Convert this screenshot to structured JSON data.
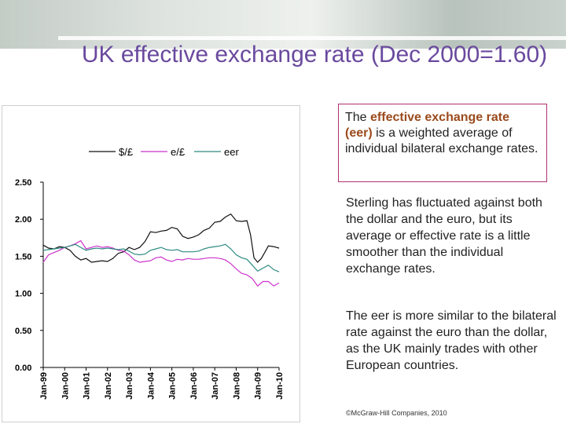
{
  "title": "UK effective exchange rate (Dec 2000=1.60)",
  "definition": {
    "pre": "The ",
    "highlight": "effective exchange rate (eer)",
    "post": " is a weighted average of individual bilateral exchange rates."
  },
  "paragraphs": [
    "Sterling has fluctuated against both the dollar and the euro, but its average or effective rate is a little smoother than the individual exchange rates.",
    "The eer  is more similar to the bilateral rate against the euro than the dollar, as the UK mainly trades with other European countries."
  ],
  "footer": "©McGraw-Hill Companies, 2010",
  "chart_data": {
    "type": "line",
    "title": "",
    "xlabel": "",
    "ylabel": "",
    "ylim": [
      0,
      2.5
    ],
    "y_ticks": [
      "0.00",
      "0.50",
      "1.00",
      "1.50",
      "2.00",
      "2.50"
    ],
    "y_tick_values": [
      0,
      0.5,
      1.0,
      1.5,
      2.0,
      2.5
    ],
    "x_ticks": [
      "Jan-99",
      "Jan-00",
      "Jan-01",
      "Jan-02",
      "Jan-03",
      "Jan-04",
      "Jan-05",
      "Jan-06",
      "Jan-07",
      "Jan-08",
      "Jan-09",
      "Jan-10"
    ],
    "x_tick_values": [
      1999,
      2000,
      2001,
      2002,
      2003,
      2004,
      2005,
      2006,
      2007,
      2008,
      2009,
      2010
    ],
    "grid": false,
    "legend_position": "top",
    "series": [
      {
        "name": "$/£",
        "color": "#111111",
        "x": [
          1999.0,
          1999.25,
          1999.5,
          1999.75,
          2000.0,
          2000.25,
          2000.5,
          2000.75,
          2001.0,
          2001.25,
          2001.5,
          2001.75,
          2002.0,
          2002.25,
          2002.5,
          2002.75,
          2003.0,
          2003.25,
          2003.5,
          2003.75,
          2004.0,
          2004.25,
          2004.5,
          2004.75,
          2005.0,
          2005.25,
          2005.5,
          2005.75,
          2006.0,
          2006.25,
          2006.5,
          2006.75,
          2007.0,
          2007.25,
          2007.5,
          2007.75,
          2008.0,
          2008.25,
          2008.5,
          2008.67,
          2008.83,
          2009.0,
          2009.17,
          2009.33,
          2009.5,
          2009.75,
          2010.0
        ],
        "y": [
          1.65,
          1.61,
          1.6,
          1.63,
          1.62,
          1.58,
          1.5,
          1.45,
          1.47,
          1.42,
          1.43,
          1.44,
          1.43,
          1.47,
          1.54,
          1.56,
          1.62,
          1.59,
          1.62,
          1.7,
          1.83,
          1.82,
          1.84,
          1.85,
          1.89,
          1.87,
          1.77,
          1.74,
          1.76,
          1.79,
          1.85,
          1.88,
          1.96,
          1.97,
          2.03,
          2.07,
          1.98,
          1.97,
          1.98,
          1.79,
          1.48,
          1.42,
          1.47,
          1.55,
          1.64,
          1.63,
          1.61
        ]
      },
      {
        "name": "e/£",
        "color": "#cc33cc",
        "x": [
          1999.0,
          1999.25,
          1999.5,
          1999.75,
          2000.0,
          2000.25,
          2000.5,
          2000.75,
          2001.0,
          2001.25,
          2001.5,
          2001.75,
          2002.0,
          2002.25,
          2002.5,
          2002.75,
          2003.0,
          2003.25,
          2003.5,
          2003.75,
          2004.0,
          2004.25,
          2004.5,
          2004.75,
          2005.0,
          2005.25,
          2005.5,
          2005.75,
          2006.0,
          2006.25,
          2006.5,
          2006.75,
          2007.0,
          2007.25,
          2007.5,
          2007.75,
          2008.0,
          2008.25,
          2008.5,
          2008.75,
          2009.0,
          2009.25,
          2009.5,
          2009.75,
          2010.0
        ],
        "y": [
          1.42,
          1.52,
          1.55,
          1.58,
          1.62,
          1.64,
          1.67,
          1.71,
          1.6,
          1.62,
          1.64,
          1.62,
          1.63,
          1.61,
          1.58,
          1.57,
          1.52,
          1.45,
          1.42,
          1.43,
          1.44,
          1.48,
          1.49,
          1.45,
          1.43,
          1.46,
          1.45,
          1.47,
          1.46,
          1.46,
          1.47,
          1.48,
          1.48,
          1.47,
          1.45,
          1.4,
          1.33,
          1.27,
          1.25,
          1.2,
          1.1,
          1.16,
          1.16,
          1.1,
          1.14
        ]
      },
      {
        "name": "eer",
        "color": "#2e8b80",
        "x": [
          1999.0,
          1999.25,
          1999.5,
          1999.75,
          2000.0,
          2000.25,
          2000.5,
          2000.75,
          2001.0,
          2001.25,
          2001.5,
          2001.75,
          2002.0,
          2002.25,
          2002.5,
          2002.75,
          2003.0,
          2003.25,
          2003.5,
          2003.75,
          2004.0,
          2004.25,
          2004.5,
          2004.75,
          2005.0,
          2005.25,
          2005.5,
          2005.75,
          2006.0,
          2006.25,
          2006.5,
          2006.75,
          2007.0,
          2007.25,
          2007.5,
          2007.75,
          2008.0,
          2008.25,
          2008.5,
          2008.75,
          2009.0,
          2009.25,
          2009.5,
          2009.75,
          2010.0
        ],
        "y": [
          1.58,
          1.59,
          1.6,
          1.61,
          1.62,
          1.64,
          1.66,
          1.62,
          1.58,
          1.6,
          1.61,
          1.6,
          1.61,
          1.6,
          1.59,
          1.6,
          1.57,
          1.53,
          1.52,
          1.53,
          1.58,
          1.6,
          1.62,
          1.59,
          1.58,
          1.59,
          1.56,
          1.56,
          1.56,
          1.57,
          1.6,
          1.62,
          1.63,
          1.64,
          1.66,
          1.6,
          1.52,
          1.48,
          1.46,
          1.38,
          1.3,
          1.34,
          1.38,
          1.32,
          1.29
        ]
      }
    ]
  }
}
